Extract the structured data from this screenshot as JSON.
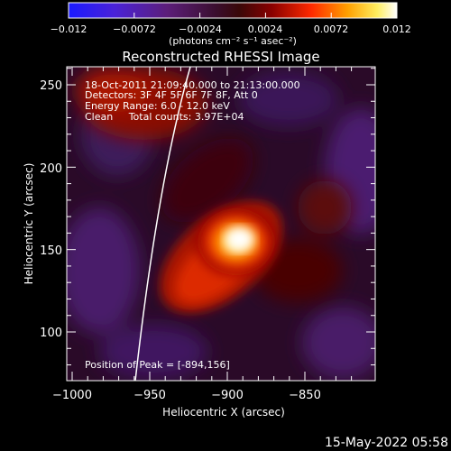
{
  "colorbar": {
    "min": -0.012,
    "max": 0.012,
    "tick_labels": [
      "−0.012",
      "−0.0072",
      "−0.0024",
      "0.0024",
      "0.0072",
      "0.012"
    ],
    "unit_label": "(photons cm⁻² s⁻¹ asec⁻²)"
  },
  "chart_data": {
    "type": "heatmap",
    "title": "Reconstructed RHESSI Image",
    "xlabel": "Heliocentric X (arcsec)",
    "ylabel": "Heliocentric Y (arcsec)",
    "xlim": [
      -1000,
      -900
    ],
    "ylim": [
      70,
      262
    ],
    "xticks": [
      -1000,
      -950,
      -900,
      -850
    ],
    "yticks": [
      100,
      150,
      200,
      250
    ],
    "xtick_labels": [
      "−1000",
      "−950",
      "−900",
      "−850"
    ],
    "ytick_labels": [
      "100",
      "150",
      "200",
      "250"
    ],
    "annotations": [
      "18-Oct-2011 21:09:40.000 to 21:13:00.000",
      "Detectors: 3F 4F 5F 6F 7F 8F, Att 0",
      "Energy Range: 6.0 - 12.0 keV",
      "Clean     Total counts: 3.97E+04"
    ],
    "peak_label": "Position of Peak = [-894,156]",
    "peak": {
      "x": -894,
      "y": 156
    },
    "colormap": "blue-purple-red-yellow-white"
  },
  "footer": {
    "timestamp": "15-May-2022 05:58"
  }
}
